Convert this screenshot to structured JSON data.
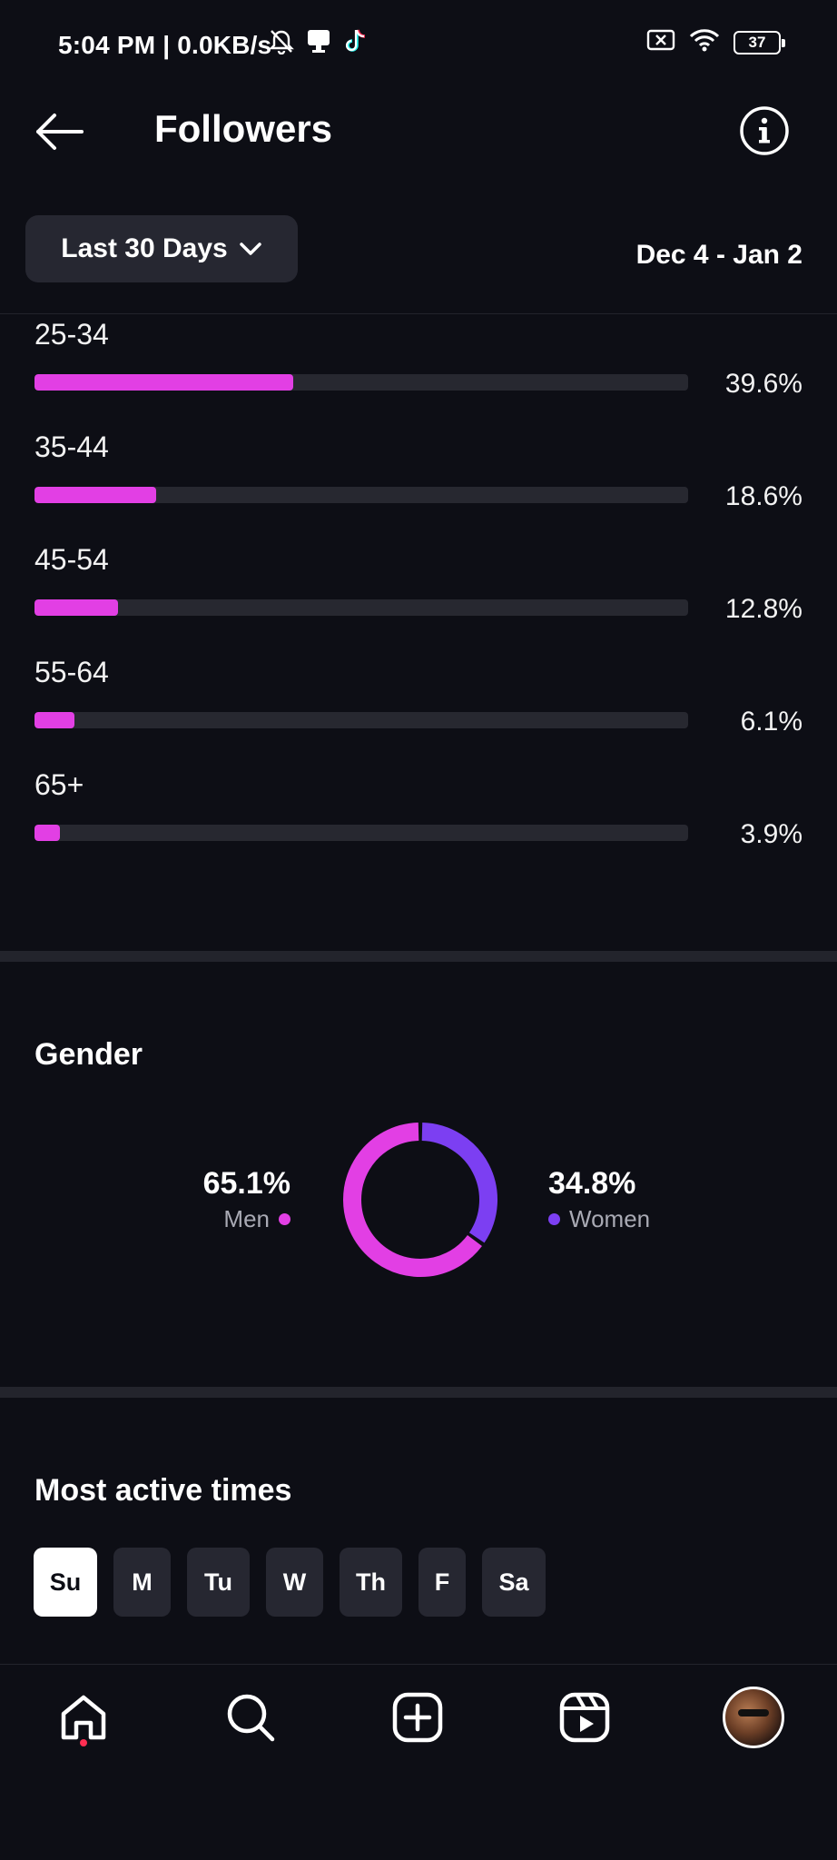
{
  "status_bar": {
    "time": "5:04 PM | 0.0KB/s",
    "battery": "37"
  },
  "header": {
    "title": "Followers"
  },
  "filter": {
    "range_label": "Last 30 Days",
    "date_range": "Dec 4 - Jan 2"
  },
  "age_ranges": [
    {
      "label": "25-34",
      "percent_text": "39.6%",
      "value": 39.6
    },
    {
      "label": "35-44",
      "percent_text": "18.6%",
      "value": 18.6
    },
    {
      "label": "45-54",
      "percent_text": "12.8%",
      "value": 12.8
    },
    {
      "label": "55-64",
      "percent_text": "6.1%",
      "value": 6.1
    },
    {
      "label": "65+",
      "percent_text": "3.9%",
      "value": 3.9
    }
  ],
  "gender": {
    "title": "Gender",
    "men": {
      "percent_text": "65.1%",
      "label": "Men",
      "value": 65.1,
      "color": "#e23fe4"
    },
    "women": {
      "percent_text": "34.8%",
      "label": "Women",
      "value": 34.8,
      "color": "#7c3ff2"
    }
  },
  "active_times": {
    "title": "Most active times",
    "days": [
      "Su",
      "M",
      "Tu",
      "W",
      "Th",
      "F",
      "Sa"
    ],
    "selected": "Su"
  },
  "bottom_nav": {
    "items": [
      "home-icon",
      "search-icon",
      "create-icon",
      "reels-icon",
      "profile-avatar"
    ]
  },
  "colors": {
    "accent": "#e23fe4",
    "secondary": "#7c3ff2",
    "background": "#0d0e15",
    "track": "#272830"
  }
}
